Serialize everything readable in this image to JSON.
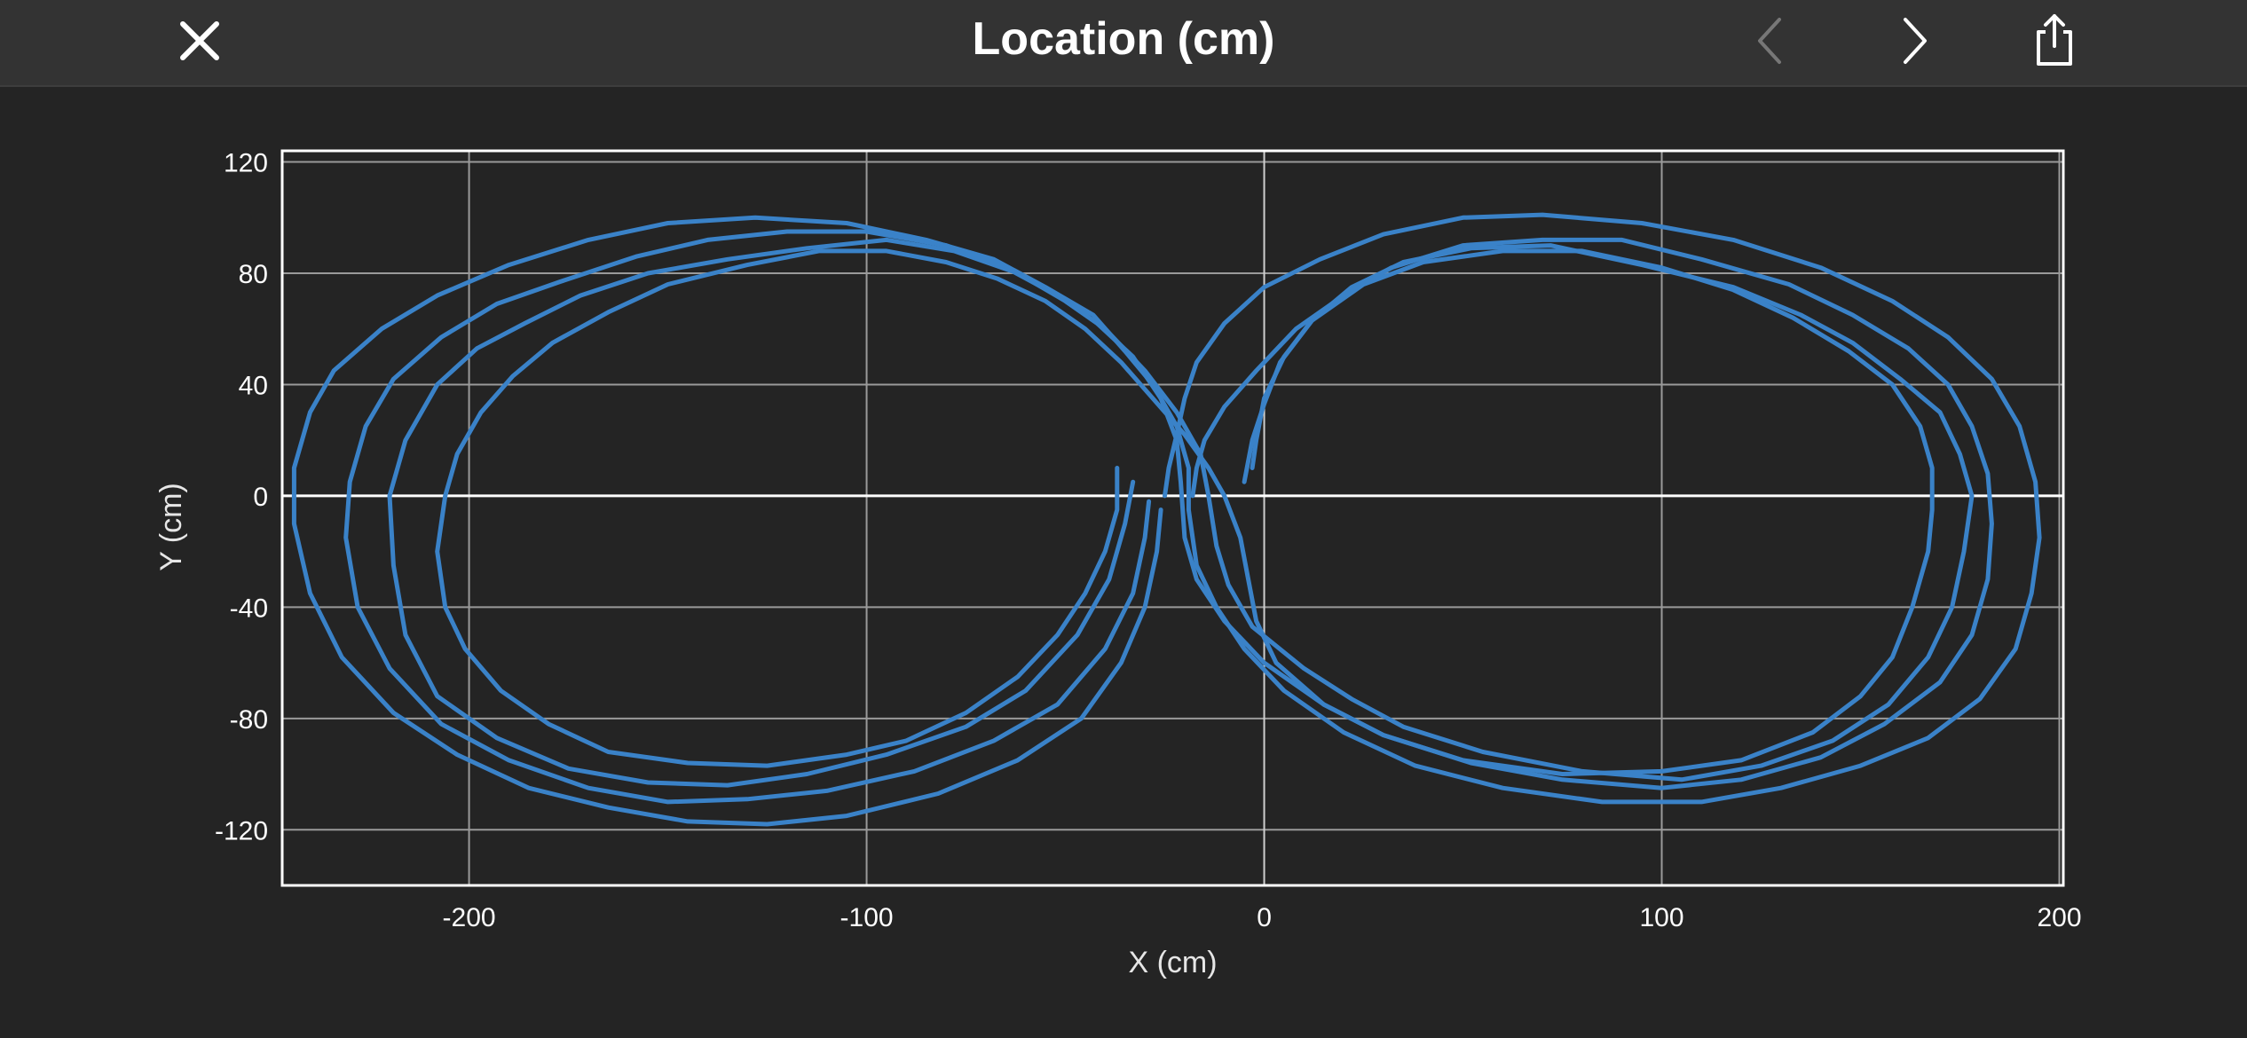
{
  "header": {
    "title": "Location (cm)",
    "close_icon": "close-icon",
    "prev_icon": "chevron-left-icon",
    "next_icon": "chevron-right-icon",
    "share_icon": "share-icon"
  },
  "colors": {
    "background": "#242424",
    "header": "#333333",
    "series": "#3a82c8",
    "grid": "#9a9a9a",
    "axis": "#ffffff",
    "prev_disabled": "#777777"
  },
  "chart_data": {
    "type": "line",
    "xlabel": "X (cm)",
    "ylabel": "Y (cm)",
    "xlim": [
      -247,
      201
    ],
    "ylim": [
      -140,
      124
    ],
    "xticks": [
      -200,
      -100,
      0,
      100,
      200
    ],
    "yticks": [
      120,
      80,
      40,
      0,
      -40,
      -80,
      -120
    ],
    "xtick_labels": [
      "-200",
      "-100",
      "0",
      "100",
      "200"
    ],
    "ytick_labels": [
      "120",
      "80",
      "40",
      "0",
      "-40",
      "-80",
      "-120"
    ],
    "grid": true,
    "legend": "none",
    "series": [
      {
        "values": [
          [
            -37,
            10
          ],
          [
            -37,
            -5
          ],
          [
            -40,
            -20
          ],
          [
            -45,
            -35
          ],
          [
            -52,
            -50
          ],
          [
            -62,
            -65
          ],
          [
            -75,
            -78
          ],
          [
            -90,
            -88
          ],
          [
            -105,
            -93
          ],
          [
            -125,
            -97
          ],
          [
            -145,
            -96
          ],
          [
            -165,
            -92
          ],
          [
            -180,
            -82
          ],
          [
            -192,
            -70
          ],
          [
            -201,
            -55
          ],
          [
            -206,
            -40
          ],
          [
            -208,
            -20
          ],
          [
            -206,
            0
          ],
          [
            -203,
            15
          ],
          [
            -197,
            30
          ],
          [
            -189,
            43
          ],
          [
            -179,
            55
          ],
          [
            -165,
            66
          ],
          [
            -150,
            76
          ],
          [
            -130,
            83
          ],
          [
            -112,
            88
          ],
          [
            -95,
            88
          ],
          [
            -80,
            84
          ],
          [
            -67,
            78
          ],
          [
            -55,
            70
          ],
          [
            -45,
            60
          ],
          [
            -36,
            48
          ],
          [
            -28,
            35
          ],
          [
            -20,
            22
          ],
          [
            -14,
            10
          ],
          [
            -10,
            0
          ],
          [
            -6,
            -15
          ],
          [
            -4,
            -30
          ],
          [
            -2,
            -45
          ],
          [
            3,
            -60
          ],
          [
            15,
            -75
          ],
          [
            30,
            -86
          ],
          [
            50,
            -95
          ],
          [
            75,
            -100
          ],
          [
            100,
            -99
          ],
          [
            120,
            -95
          ],
          [
            138,
            -85
          ],
          [
            150,
            -72
          ],
          [
            158,
            -58
          ],
          [
            163,
            -40
          ],
          [
            167,
            -20
          ],
          [
            168,
            -5
          ],
          [
            168,
            10
          ],
          [
            165,
            25
          ],
          [
            158,
            40
          ],
          [
            147,
            52
          ],
          [
            133,
            64
          ],
          [
            118,
            74
          ],
          [
            100,
            82
          ],
          [
            80,
            88
          ],
          [
            60,
            88
          ],
          [
            40,
            84
          ],
          [
            25,
            76
          ],
          [
            12,
            63
          ],
          [
            5,
            50
          ],
          [
            0,
            35
          ],
          [
            -2,
            20
          ],
          [
            -3,
            10
          ]
        ]
      },
      {
        "values": [
          [
            -33,
            5
          ],
          [
            -35,
            -10
          ],
          [
            -39,
            -30
          ],
          [
            -47,
            -50
          ],
          [
            -60,
            -70
          ],
          [
            -75,
            -83
          ],
          [
            -95,
            -93
          ],
          [
            -115,
            -100
          ],
          [
            -135,
            -104
          ],
          [
            -155,
            -103
          ],
          [
            -175,
            -98
          ],
          [
            -193,
            -87
          ],
          [
            -208,
            -72
          ],
          [
            -216,
            -50
          ],
          [
            -219,
            -25
          ],
          [
            -220,
            0
          ],
          [
            -216,
            20
          ],
          [
            -208,
            40
          ],
          [
            -198,
            53
          ],
          [
            -186,
            62
          ],
          [
            -172,
            72
          ],
          [
            -155,
            80
          ],
          [
            -135,
            85
          ],
          [
            -115,
            89
          ],
          [
            -95,
            92
          ],
          [
            -78,
            88
          ],
          [
            -62,
            80
          ],
          [
            -50,
            70
          ],
          [
            -40,
            60
          ],
          [
            -30,
            45
          ],
          [
            -22,
            30
          ],
          [
            -16,
            15
          ],
          [
            -14,
            0
          ],
          [
            -12,
            -18
          ],
          [
            -9,
            -32
          ],
          [
            -3,
            -47
          ],
          [
            10,
            -62
          ],
          [
            22,
            -73
          ],
          [
            35,
            -83
          ],
          [
            55,
            -92
          ],
          [
            80,
            -99
          ],
          [
            105,
            -102
          ],
          [
            125,
            -97
          ],
          [
            143,
            -88
          ],
          [
            157,
            -75
          ],
          [
            167,
            -58
          ],
          [
            173,
            -40
          ],
          [
            176,
            -20
          ],
          [
            178,
            0
          ],
          [
            175,
            15
          ],
          [
            170,
            30
          ],
          [
            160,
            42
          ],
          [
            148,
            55
          ],
          [
            135,
            65
          ],
          [
            118,
            75
          ],
          [
            95,
            83
          ],
          [
            72,
            90
          ],
          [
            52,
            89
          ],
          [
            35,
            84
          ],
          [
            22,
            75
          ],
          [
            12,
            63
          ],
          [
            4,
            48
          ],
          [
            0,
            33
          ],
          [
            -3,
            20
          ],
          [
            -5,
            5
          ]
        ]
      },
      {
        "values": [
          [
            -29,
            -2
          ],
          [
            -30,
            -15
          ],
          [
            -33,
            -35
          ],
          [
            -40,
            -55
          ],
          [
            -52,
            -75
          ],
          [
            -68,
            -88
          ],
          [
            -88,
            -99
          ],
          [
            -110,
            -106
          ],
          [
            -130,
            -109
          ],
          [
            -150,
            -110
          ],
          [
            -170,
            -105
          ],
          [
            -190,
            -95
          ],
          [
            -207,
            -82
          ],
          [
            -220,
            -62
          ],
          [
            -228,
            -40
          ],
          [
            -231,
            -15
          ],
          [
            -230,
            5
          ],
          [
            -226,
            25
          ],
          [
            -219,
            42
          ],
          [
            -207,
            57
          ],
          [
            -193,
            69
          ],
          [
            -177,
            77
          ],
          [
            -158,
            86
          ],
          [
            -140,
            92
          ],
          [
            -120,
            95
          ],
          [
            -100,
            95
          ],
          [
            -80,
            90
          ],
          [
            -65,
            82
          ],
          [
            -52,
            72
          ],
          [
            -42,
            62
          ],
          [
            -33,
            50
          ],
          [
            -26,
            35
          ],
          [
            -22,
            20
          ],
          [
            -21,
            5
          ],
          [
            -20,
            -15
          ],
          [
            -17,
            -30
          ],
          [
            -10,
            -45
          ],
          [
            0,
            -60
          ],
          [
            15,
            -75
          ],
          [
            30,
            -86
          ],
          [
            52,
            -96
          ],
          [
            75,
            -102
          ],
          [
            100,
            -105
          ],
          [
            120,
            -102
          ],
          [
            140,
            -94
          ],
          [
            156,
            -82
          ],
          [
            170,
            -67
          ],
          [
            178,
            -50
          ],
          [
            182,
            -30
          ],
          [
            183,
            -10
          ],
          [
            182,
            8
          ],
          [
            178,
            25
          ],
          [
            172,
            40
          ],
          [
            162,
            53
          ],
          [
            148,
            65
          ],
          [
            132,
            76
          ],
          [
            110,
            85
          ],
          [
            90,
            92
          ],
          [
            70,
            92
          ],
          [
            50,
            90
          ],
          [
            32,
            82
          ],
          [
            20,
            72
          ],
          [
            8,
            60
          ],
          [
            -2,
            45
          ],
          [
            -10,
            32
          ],
          [
            -15,
            20
          ],
          [
            -17,
            10
          ],
          [
            -18,
            0
          ]
        ]
      },
      {
        "values": [
          [
            -26,
            -5
          ],
          [
            -27,
            -20
          ],
          [
            -30,
            -40
          ],
          [
            -36,
            -60
          ],
          [
            -46,
            -80
          ],
          [
            -62,
            -95
          ],
          [
            -82,
            -107
          ],
          [
            -105,
            -115
          ],
          [
            -125,
            -118
          ],
          [
            -145,
            -117
          ],
          [
            -165,
            -112
          ],
          [
            -185,
            -105
          ],
          [
            -203,
            -93
          ],
          [
            -219,
            -78
          ],
          [
            -232,
            -58
          ],
          [
            -240,
            -35
          ],
          [
            -244,
            -10
          ],
          [
            -244,
            10
          ],
          [
            -240,
            30
          ],
          [
            -234,
            45
          ],
          [
            -222,
            60
          ],
          [
            -208,
            72
          ],
          [
            -190,
            83
          ],
          [
            -170,
            92
          ],
          [
            -150,
            98
          ],
          [
            -128,
            100
          ],
          [
            -105,
            98
          ],
          [
            -85,
            92
          ],
          [
            -68,
            85
          ],
          [
            -55,
            75
          ],
          [
            -43,
            65
          ],
          [
            -35,
            52
          ],
          [
            -28,
            40
          ],
          [
            -22,
            25
          ],
          [
            -19,
            10
          ],
          [
            -19,
            -5
          ],
          [
            -17,
            -25
          ],
          [
            -12,
            -40
          ],
          [
            -5,
            -55
          ],
          [
            5,
            -70
          ],
          [
            20,
            -85
          ],
          [
            38,
            -97
          ],
          [
            60,
            -105
          ],
          [
            85,
            -110
          ],
          [
            110,
            -110
          ],
          [
            130,
            -105
          ],
          [
            150,
            -97
          ],
          [
            167,
            -87
          ],
          [
            180,
            -73
          ],
          [
            189,
            -55
          ],
          [
            193,
            -35
          ],
          [
            195,
            -15
          ],
          [
            194,
            5
          ],
          [
            190,
            25
          ],
          [
            183,
            42
          ],
          [
            172,
            57
          ],
          [
            158,
            70
          ],
          [
            140,
            82
          ],
          [
            118,
            92
          ],
          [
            95,
            98
          ],
          [
            70,
            101
          ],
          [
            50,
            100
          ],
          [
            30,
            94
          ],
          [
            14,
            85
          ],
          [
            0,
            75
          ],
          [
            -10,
            62
          ],
          [
            -17,
            48
          ],
          [
            -20,
            35
          ],
          [
            -22,
            22
          ],
          [
            -24,
            10
          ],
          [
            -25,
            0
          ]
        ]
      }
    ]
  }
}
